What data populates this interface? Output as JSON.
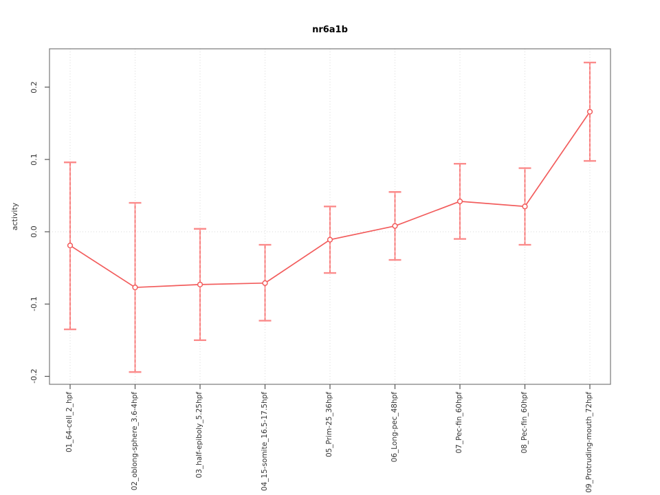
{
  "chart_data": {
    "type": "line",
    "title": "nr6a1b",
    "xlabel": "",
    "ylabel": "activity",
    "legend": "none",
    "grid": {
      "vertical_dotted_per_category": true,
      "horizontal_dotted_at_zero": true
    },
    "categories": [
      "01_64-cell_2_hpf",
      "02_oblong-sphere_3.6-4hpf",
      "03_half-epiboly_5.25hpf",
      "04_15-somite_16.5-17.5hpf",
      "05_Prim-25_36hpf",
      "06_Long-pec_48hpf",
      "07_Pec-fin_60hpf",
      "08_Pec-fin_60hpf",
      "09_Protruding-mouth_72hpf"
    ],
    "series": [
      {
        "name": "activity",
        "values": [
          -0.019,
          -0.077,
          -0.073,
          -0.071,
          -0.011,
          0.008,
          0.042,
          0.035,
          0.166
        ],
        "error_low": [
          -0.135,
          -0.194,
          -0.15,
          -0.123,
          -0.057,
          -0.039,
          -0.01,
          -0.018,
          0.098
        ],
        "error_high": [
          0.096,
          0.04,
          0.004,
          -0.018,
          0.035,
          0.055,
          0.094,
          0.088,
          0.234
        ]
      }
    ],
    "yticks": [
      -0.2,
      -0.1,
      0.0,
      0.1,
      0.2
    ],
    "ytick_labels": [
      "-0.2",
      "-0.1",
      "0.0",
      "0.1",
      "0.2"
    ],
    "ylim": [
      -0.211,
      0.253
    ],
    "colors": {
      "series_line": "#f25c5c",
      "marker_stroke": "#f25c5c",
      "marker_fill": "#ffffff",
      "error_bar": "#fb8b8b",
      "error_bar_dash": "#ef5350",
      "grid": "#d9d9d9",
      "axis_box": "#777777",
      "tick": "#555555",
      "text": "#333333",
      "title": "#000000"
    }
  }
}
